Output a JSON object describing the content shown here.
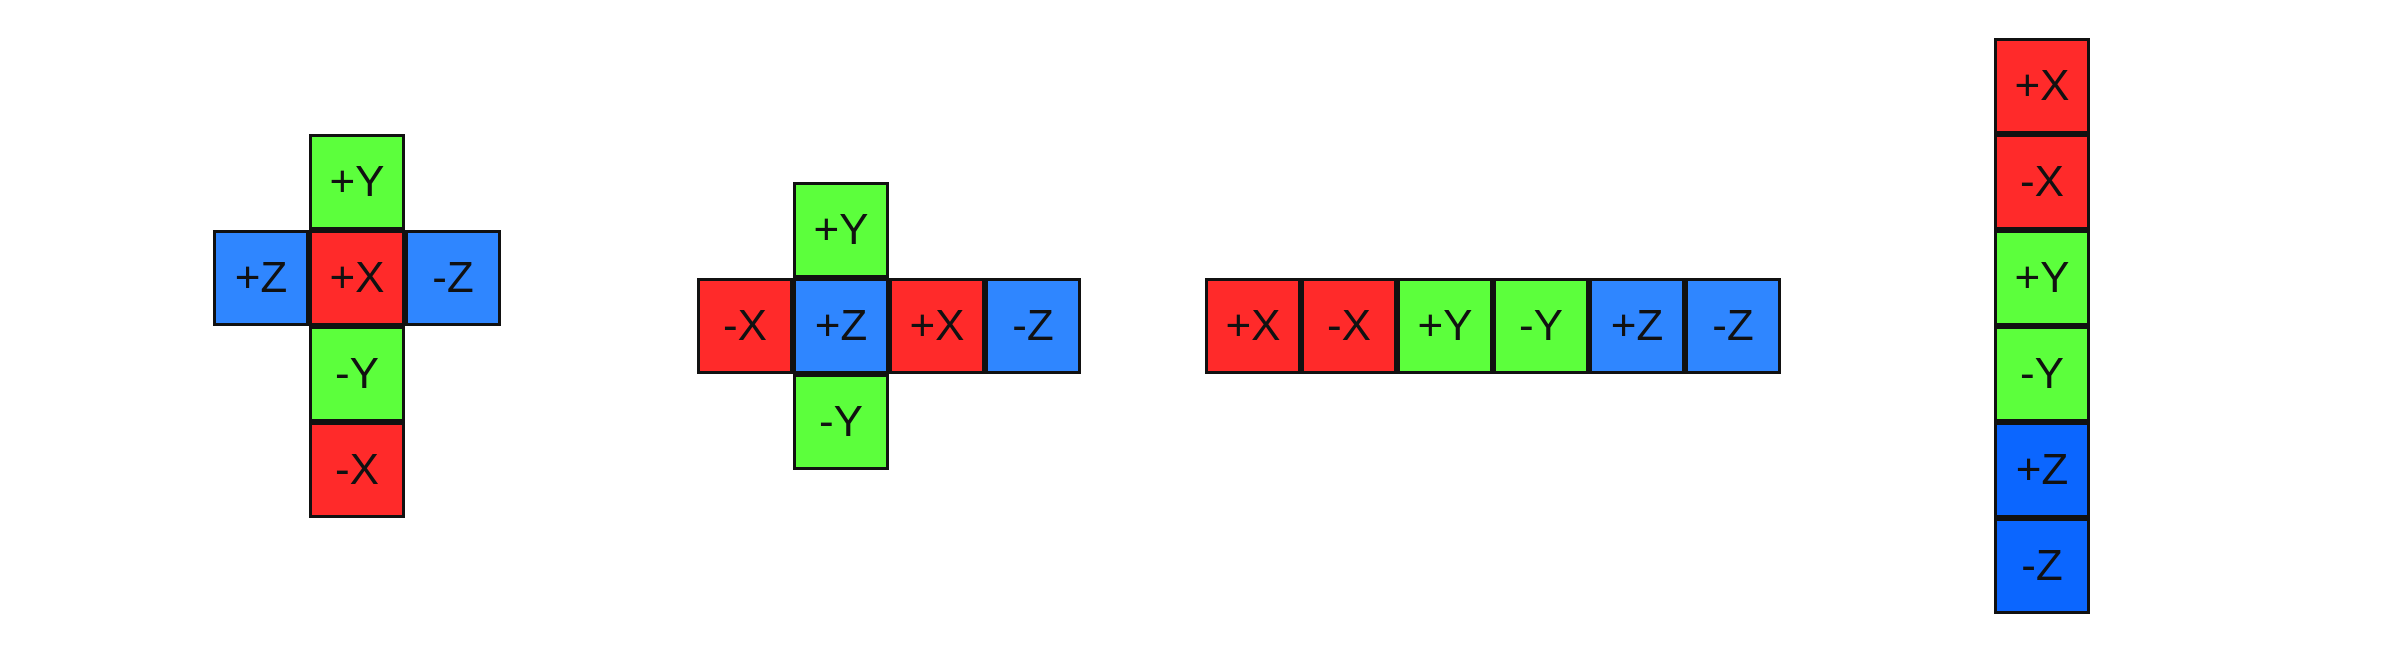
{
  "colors": {
    "red": "#ff2a2a",
    "green": "#5cff3c",
    "blue_light": "#2f86ff",
    "blue_dark": "#0b66ff",
    "outline": "#111111",
    "background": "#ffffff"
  },
  "layouts": [
    {
      "name": "vertical-cross",
      "faces": [
        {
          "label": "+Y",
          "color": "green",
          "col": 1,
          "row": 0
        },
        {
          "label": "+Z",
          "color": "blue_light",
          "col": 0,
          "row": 1
        },
        {
          "label": "+X",
          "color": "red",
          "col": 1,
          "row": 1
        },
        {
          "label": "-Z",
          "color": "blue_light",
          "col": 2,
          "row": 1
        },
        {
          "label": "-Y",
          "color": "green",
          "col": 1,
          "row": 2
        },
        {
          "label": "-X",
          "color": "red",
          "col": 1,
          "row": 3
        }
      ]
    },
    {
      "name": "horizontal-cross",
      "faces": [
        {
          "label": "+Y",
          "color": "green",
          "col": 1,
          "row": 0
        },
        {
          "label": "-X",
          "color": "red",
          "col": 0,
          "row": 1
        },
        {
          "label": "+Z",
          "color": "blue_light",
          "col": 1,
          "row": 1
        },
        {
          "label": "+X",
          "color": "red",
          "col": 2,
          "row": 1
        },
        {
          "label": "-Z",
          "color": "blue_light",
          "col": 3,
          "row": 1
        },
        {
          "label": "-Y",
          "color": "green",
          "col": 1,
          "row": 2
        }
      ]
    },
    {
      "name": "horizontal-strip",
      "faces": [
        {
          "label": "+X",
          "color": "red",
          "col": 0,
          "row": 0
        },
        {
          "label": "-X",
          "color": "red",
          "col": 1,
          "row": 0
        },
        {
          "label": "+Y",
          "color": "green",
          "col": 2,
          "row": 0
        },
        {
          "label": "-Y",
          "color": "green",
          "col": 3,
          "row": 0
        },
        {
          "label": "+Z",
          "color": "blue_light",
          "col": 4,
          "row": 0
        },
        {
          "label": "-Z",
          "color": "blue_light",
          "col": 5,
          "row": 0
        }
      ]
    },
    {
      "name": "vertical-strip",
      "faces": [
        {
          "label": "+X",
          "color": "red",
          "col": 0,
          "row": 0
        },
        {
          "label": "-X",
          "color": "red",
          "col": 0,
          "row": 1
        },
        {
          "label": "+Y",
          "color": "green",
          "col": 0,
          "row": 2
        },
        {
          "label": "-Y",
          "color": "green",
          "col": 0,
          "row": 3
        },
        {
          "label": "+Z",
          "color": "blue_dark",
          "col": 0,
          "row": 4
        },
        {
          "label": "-Z",
          "color": "blue_dark",
          "col": 0,
          "row": 5
        }
      ]
    }
  ]
}
